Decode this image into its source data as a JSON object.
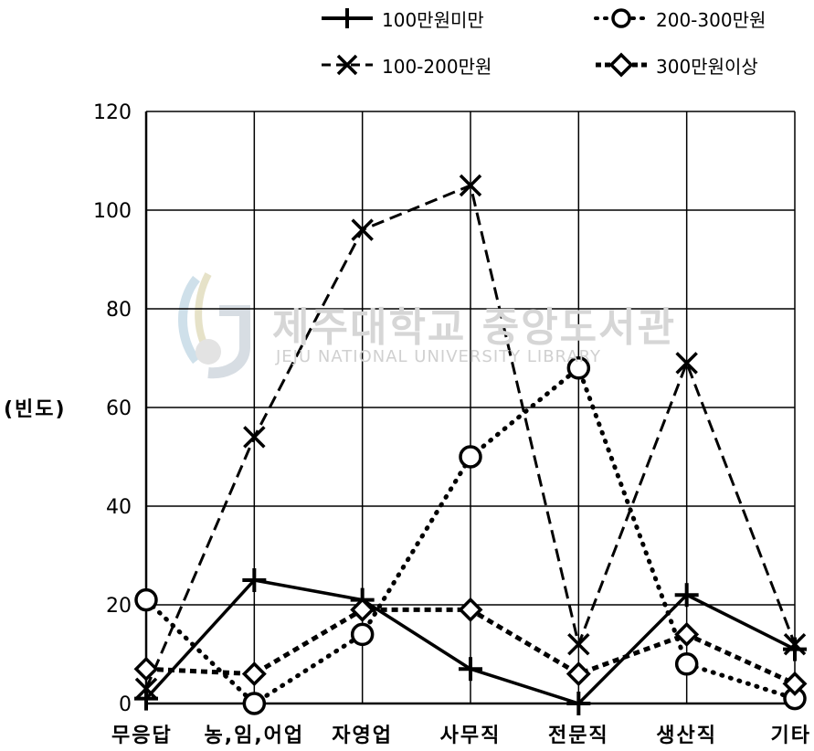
{
  "chart_data": {
    "type": "line",
    "ylabel": "(빈도)",
    "ylim": [
      0,
      120
    ],
    "yticks": [
      0,
      20,
      40,
      60,
      80,
      100,
      120
    ],
    "categories": [
      "무응답",
      "농,임,어업",
      "자영업",
      "사무직",
      "전문직",
      "생산직",
      "기타"
    ],
    "grid": true,
    "legend_position": "top",
    "series": [
      {
        "name": "100만원미만",
        "values": [
          1,
          25,
          21,
          7,
          0,
          22,
          11
        ],
        "color": "#000000",
        "dash": "solid",
        "marker": "plus"
      },
      {
        "name": "100-200만원",
        "values": [
          3,
          54,
          96,
          105,
          12,
          69,
          12
        ],
        "color": "#000000",
        "dash": "dashed",
        "marker": "x"
      },
      {
        "name": "200-300만원",
        "values": [
          21,
          0,
          14,
          50,
          68,
          8,
          1
        ],
        "color": "#000000",
        "dash": "dotted",
        "marker": "circle"
      },
      {
        "name": "300만원이상",
        "values": [
          7,
          6,
          19,
          19,
          6,
          14,
          4
        ],
        "color": "#000000",
        "dash": "dashdot",
        "marker": "diamond"
      }
    ]
  },
  "watermark": {
    "korean": "제주대학교 중앙도서관",
    "english": "JEJU NATIONAL UNIVERSITY LIBRARY",
    "seal_text": "JEJU"
  }
}
